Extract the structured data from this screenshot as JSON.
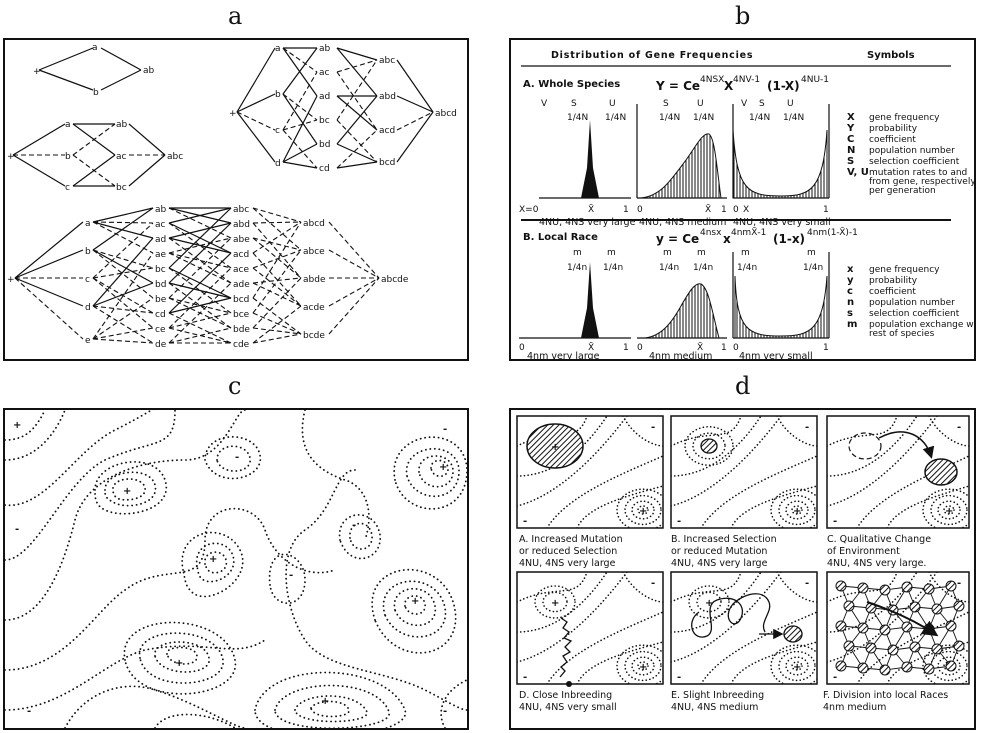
{
  "panels": {
    "a": {
      "label": "a"
    },
    "b": {
      "label": "b",
      "title": "Distribution of Gene Frequencies",
      "symbols_header": "Symbols",
      "sectionA": {
        "title": "A. Whole Species",
        "formula": "Y = Ce^{4NSX} X^{4NV-1} (1-X)^{4NU-1}",
        "formula_main": "Y = Ce",
        "formula_exp1": "4NSX",
        "formula_x": "X",
        "formula_exp2": "4NV-1",
        "formula_mid": "(1-X)",
        "formula_exp3": "4NU-1",
        "captions": [
          "4NU, 4NS very large",
          "4NU, 4NS medium",
          "4NU, 4NS very small"
        ],
        "symbols": [
          {
            "sym": "X",
            "desc": "gene frequency"
          },
          {
            "sym": "Y",
            "desc": "probability"
          },
          {
            "sym": "C",
            "desc": "coefficient"
          },
          {
            "sym": "N",
            "desc": "population number"
          },
          {
            "sym": "S",
            "desc": "selection coefficient"
          },
          {
            "sym": "V, U",
            "desc": "mutation rates to and from gene, respectively, per generation"
          }
        ]
      },
      "sectionB": {
        "title": "B. Local Race",
        "formula_main": "y = Ce",
        "formula_exp1": "4nsx",
        "formula_x": "x",
        "formula_exp2": "4nmX̄-1",
        "formula_mid": "(1-x)",
        "formula_exp3": "4nm(1-X̄)-1",
        "captions": [
          "4nm very large",
          "4nm medium",
          "4nm very small"
        ],
        "symbols": [
          {
            "sym": "x",
            "desc": "gene frequency"
          },
          {
            "sym": "y",
            "desc": "probability"
          },
          {
            "sym": "c",
            "desc": "coefficient"
          },
          {
            "sym": "n",
            "desc": "population number"
          },
          {
            "sym": "s",
            "desc": "selection coefficient"
          },
          {
            "sym": "m",
            "desc": "population exchange with rest of species"
          }
        ]
      }
    },
    "c": {
      "label": "c"
    },
    "d": {
      "label": "d",
      "captions": [
        [
          "A. Increased Mutation",
          "or reduced Selection",
          "4NU, 4NS very large"
        ],
        [
          "B. Increased Selection",
          "or reduced Mutation",
          "4NU, 4NS very large"
        ],
        [
          "C. Qualitative Change",
          "of Environment",
          "4NU, 4NS very large."
        ],
        [
          "D. Close Inbreeding",
          "4NU, 4NS very small"
        ],
        [
          "E. Slight Inbreeding",
          "4NU, 4NS medium"
        ],
        [
          "F. Division into local Races",
          "4nm medium"
        ]
      ]
    }
  }
}
